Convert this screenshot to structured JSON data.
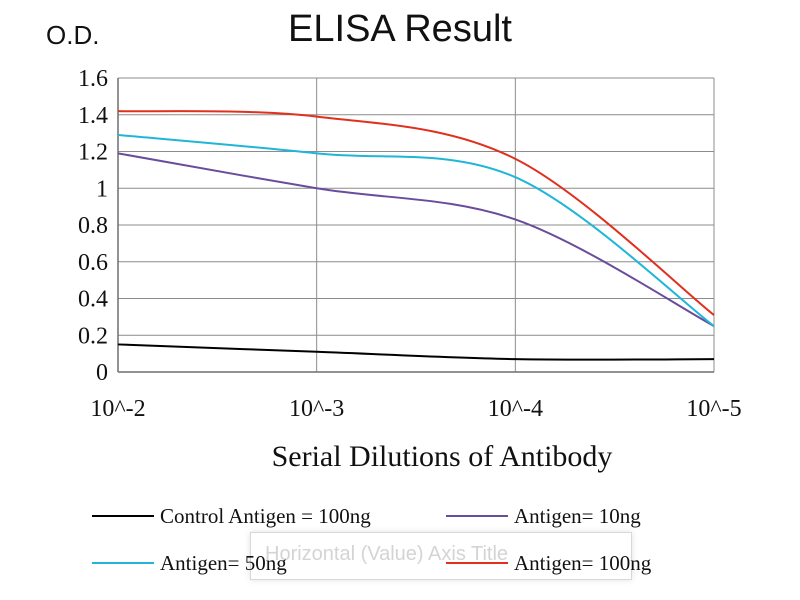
{
  "chart_data": {
    "type": "line",
    "title": "ELISA Result",
    "ylabel": "O.D.",
    "xlabel": "Serial Dilutions  of Antibody",
    "x_ticks": [
      "10^-2",
      "10^-3",
      "10^-4",
      "10^-5"
    ],
    "x_log10": [
      -2,
      -3,
      -4,
      -5
    ],
    "y_ticks": [
      "0",
      "0.2",
      "0.4",
      "0.6",
      "0.8",
      "1",
      "1.2",
      "1.4",
      "1.6"
    ],
    "ylim": [
      0,
      1.6
    ],
    "grid": true,
    "legend_placement": "bottom",
    "series": [
      {
        "name": "Control Antigen = 100ng",
        "color": "#000000",
        "x_log10": [
          -2,
          -3,
          -4,
          -5
        ],
        "y": [
          0.15,
          0.11,
          0.07,
          0.07
        ]
      },
      {
        "name": "Antigen= 10ng",
        "color": "#6a4c9c",
        "x_log10": [
          -2,
          -3,
          -4,
          -5
        ],
        "y": [
          1.19,
          1.0,
          0.83,
          0.25
        ]
      },
      {
        "name": "Antigen= 50ng",
        "color": "#1fb6d8",
        "x_log10": [
          -2,
          -3,
          -4,
          -5
        ],
        "y": [
          1.29,
          1.19,
          1.06,
          0.25
        ]
      },
      {
        "name": "Antigen= 100ng",
        "color": "#e0301e",
        "x_log10": [
          -2,
          -3,
          -4,
          -5
        ],
        "y": [
          1.42,
          1.39,
          1.16,
          0.31
        ]
      }
    ],
    "overlay_text": "Horizontal (Value) Axis Title"
  }
}
